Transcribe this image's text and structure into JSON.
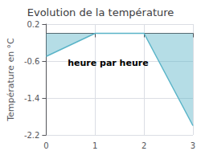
{
  "chart_data": {
    "type": "area",
    "title": "Evolution de la température",
    "xlabel": "heure par heure",
    "ylabel": "Température en °C",
    "x": [
      0,
      1,
      2,
      3
    ],
    "values": [
      -0.5,
      0.0,
      0.0,
      -2.0
    ],
    "color": "#5ab4c8",
    "xlim": [
      0,
      3
    ],
    "xticks": [
      0,
      1,
      2,
      3
    ],
    "ylim": [
      -2.2,
      0.2
    ],
    "yticks": [
      0.2,
      -0.6,
      -1.4,
      -2.2
    ],
    "grid": true
  }
}
